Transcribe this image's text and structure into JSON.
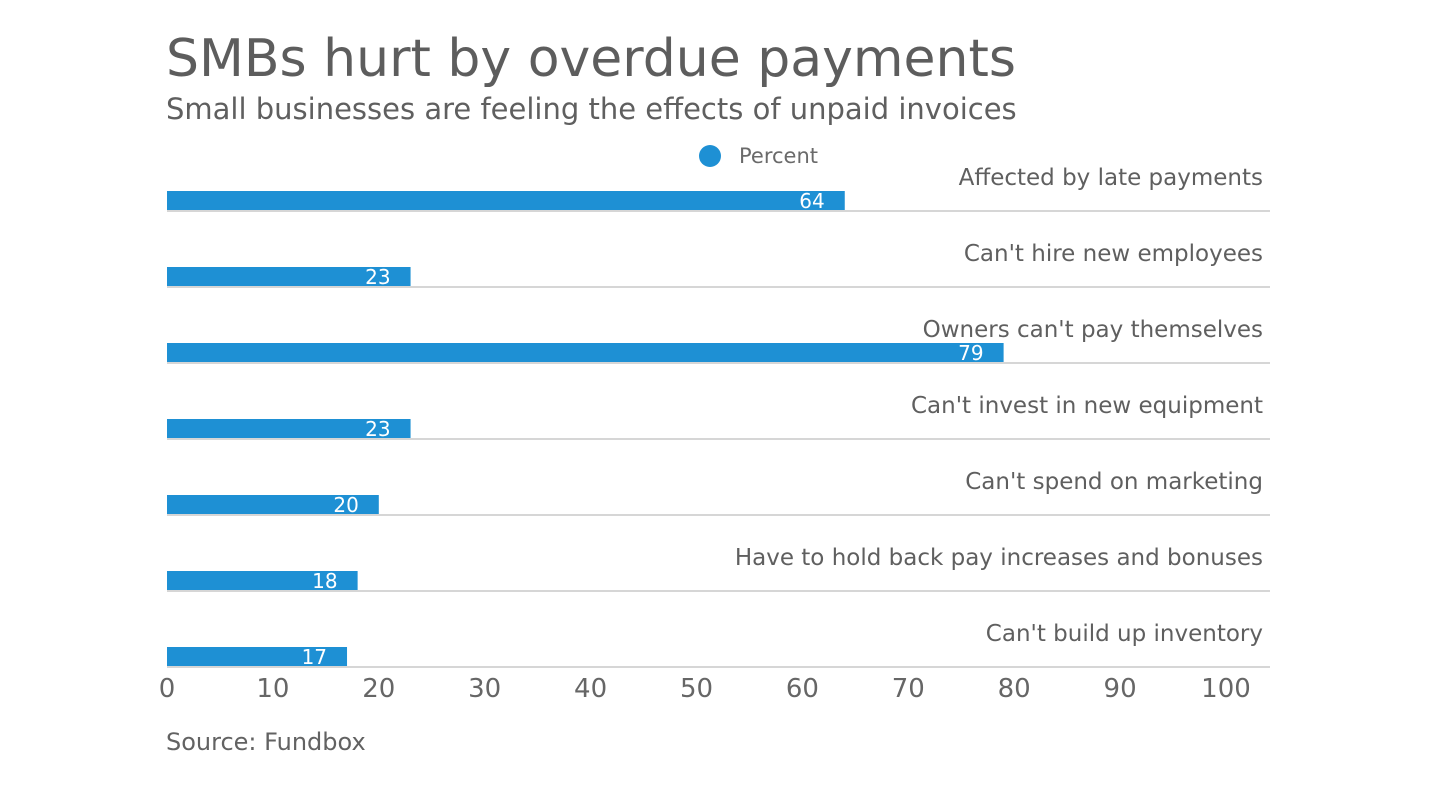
{
  "title": "SMBs hurt by overdue payments",
  "subtitle": "Small businesses are feeling the effects of unpaid invoices",
  "source": "Source: Fundbox",
  "colors": {
    "bar": "#1e90d4",
    "gridline": "#d6d6d6",
    "text": "#5f5f5f",
    "bar_label": "#ffffff"
  },
  "chart_data": {
    "type": "bar",
    "orientation": "horizontal",
    "title": "SMBs hurt by overdue payments",
    "subtitle": "Small businesses are feeling the effects of unpaid invoices",
    "categories": [
      "Affected by late payments",
      "Can't hire new employees",
      "Owners can't pay themselves",
      "Can't invest in new equipment",
      "Can't spend on marketing",
      "Have to hold back pay increases and bonuses",
      "Can't build up inventory"
    ],
    "series": [
      {
        "name": "Percent",
        "values": [
          64,
          23,
          79,
          23,
          20,
          18,
          17
        ]
      }
    ],
    "xlim": [
      0,
      100
    ],
    "xticks": [
      "0",
      "10",
      "20",
      "30",
      "40",
      "50",
      "60",
      "70",
      "80",
      "90",
      "100"
    ],
    "legend": "top-center",
    "grid": false,
    "data_labels": true
  }
}
